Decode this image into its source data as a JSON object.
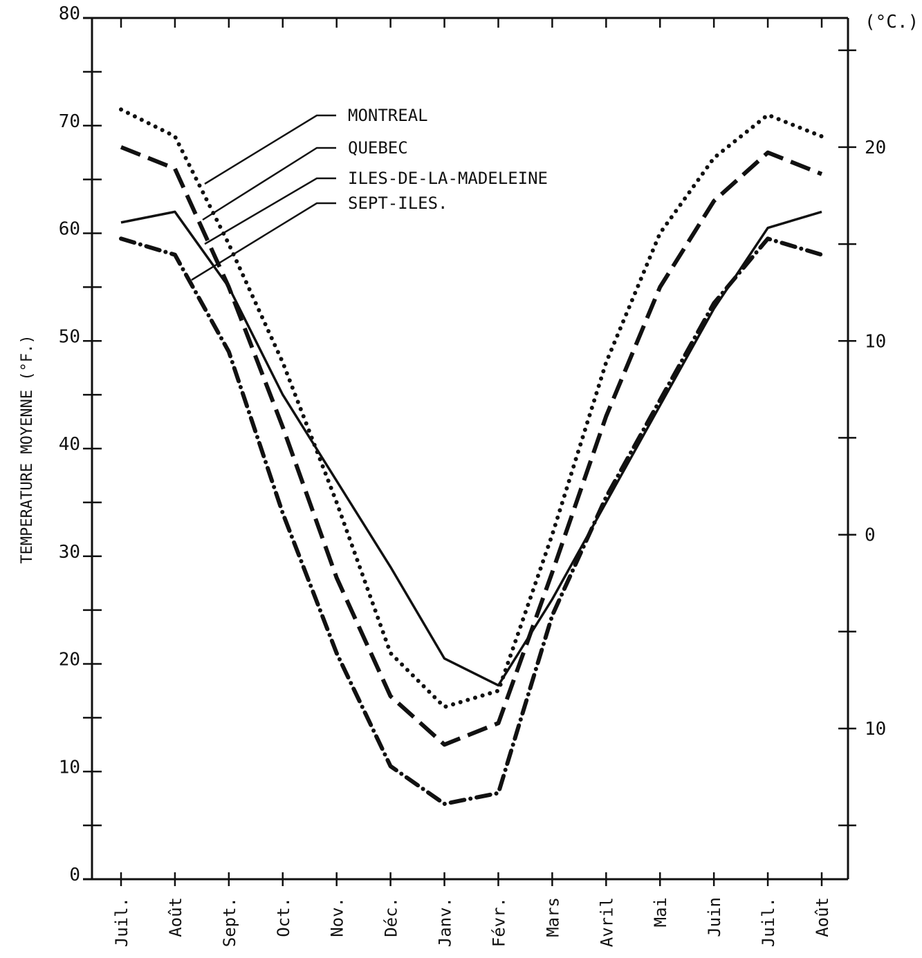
{
  "chart_data": {
    "type": "line",
    "ylabel": "TEMPERATURE MOYENNE (°F.)",
    "y2label": "(°C.)",
    "ylim": [
      0,
      80
    ],
    "y2lim": [
      -17.8,
      26.7
    ],
    "yticks": [
      0,
      10,
      20,
      30,
      40,
      50,
      60,
      70,
      80
    ],
    "y2ticks": [
      20,
      10,
      0,
      -10
    ],
    "y2tick_labels": [
      "20",
      "10",
      "0",
      "10"
    ],
    "categories": [
      "Juil.",
      "Août",
      "Sept.",
      "Oct.",
      "Nov.",
      "Déc.",
      "Janv.",
      "Févr.",
      "Mars",
      "Avril",
      "Mai",
      "Juin",
      "Juil.",
      "Août"
    ],
    "grid": false,
    "legend_position": "top-center",
    "series": [
      {
        "name": "MONTREAL",
        "style": "dotted",
        "values": [
          71.5,
          69,
          59,
          48,
          35,
          21,
          16,
          17.5,
          32,
          48,
          60,
          67,
          71,
          69
        ]
      },
      {
        "name": "QUEBEC",
        "style": "dashed",
        "values": [
          68,
          66,
          55,
          42,
          28,
          17,
          12.5,
          14.5,
          28.5,
          43,
          55,
          63,
          67.5,
          65.5
        ]
      },
      {
        "name": "ILES-DE-LA-MADELEINE",
        "style": "solid",
        "values": [
          61,
          62,
          55,
          45,
          37,
          29,
          20.5,
          18,
          26,
          35,
          44,
          53,
          60.5,
          62
        ]
      },
      {
        "name": "SEPT-ILES.",
        "style": "dashdot",
        "values": [
          59.5,
          58,
          49,
          34,
          21,
          10.5,
          7,
          8,
          24.5,
          35.5,
          44.5,
          53.5,
          59.5,
          58
        ]
      }
    ]
  }
}
